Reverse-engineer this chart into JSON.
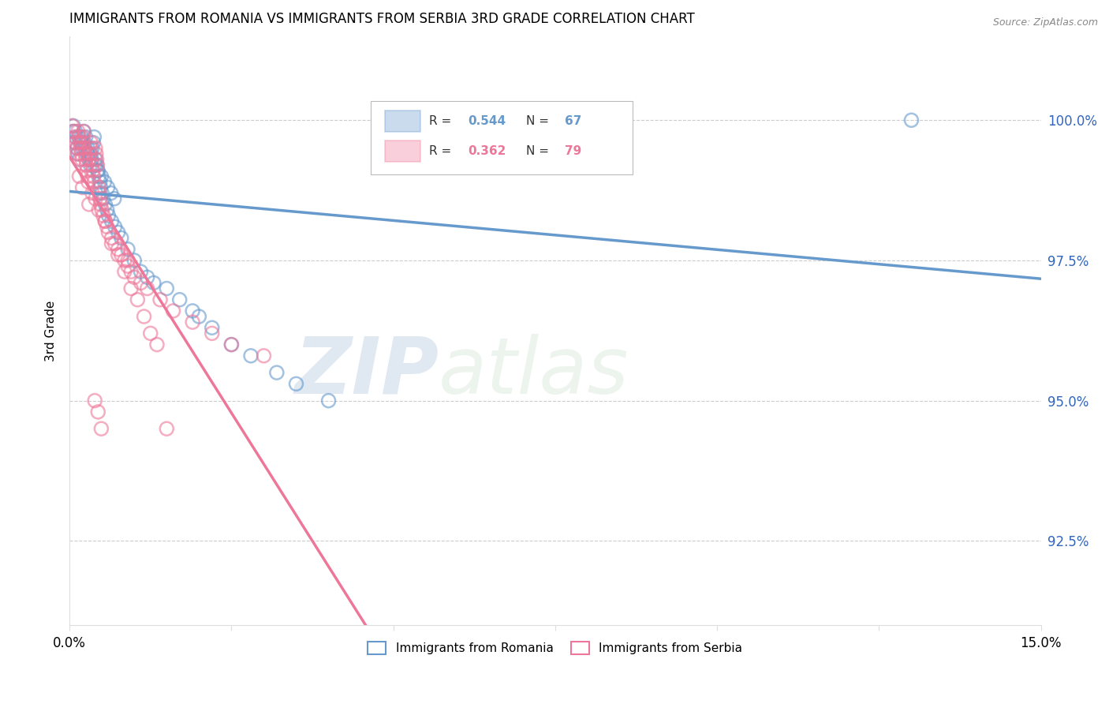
{
  "title": "IMMIGRANTS FROM ROMANIA VS IMMIGRANTS FROM SERBIA 3RD GRADE CORRELATION CHART",
  "source": "Source: ZipAtlas.com",
  "ylabel": "3rd Grade",
  "right_ytick_labels": [
    "92.5%",
    "95.0%",
    "97.5%",
    "100.0%"
  ],
  "right_yticks": [
    92.5,
    95.0,
    97.5,
    100.0
  ],
  "xlim": [
    0.0,
    15.0
  ],
  "ylim": [
    91.0,
    101.5
  ],
  "romania_color": "#6699cc",
  "serbia_color": "#ee7799",
  "romania_R": 0.544,
  "romania_N": 67,
  "serbia_R": 0.362,
  "serbia_N": 79,
  "legend_romania": "Immigrants from Romania",
  "legend_serbia": "Immigrants from Serbia",
  "watermark_zip": "ZIP",
  "watermark_atlas": "atlas",
  "romania_x": [
    0.05,
    0.08,
    0.1,
    0.12,
    0.13,
    0.15,
    0.17,
    0.18,
    0.2,
    0.22,
    0.23,
    0.25,
    0.27,
    0.28,
    0.3,
    0.32,
    0.33,
    0.35,
    0.37,
    0.38,
    0.4,
    0.42,
    0.43,
    0.45,
    0.47,
    0.48,
    0.5,
    0.52,
    0.55,
    0.58,
    0.6,
    0.65,
    0.7,
    0.75,
    0.8,
    0.9,
    1.0,
    1.1,
    1.2,
    1.3,
    1.5,
    1.7,
    1.9,
    2.0,
    2.2,
    2.5,
    2.8,
    3.2,
    3.5,
    4.0,
    7.5,
    8.5,
    13.0,
    0.06,
    0.09,
    0.14,
    0.19,
    0.24,
    0.29,
    0.34,
    0.39,
    0.44,
    0.49,
    0.54,
    0.59,
    0.64,
    0.69
  ],
  "romania_y": [
    99.8,
    99.6,
    99.7,
    99.5,
    99.4,
    99.3,
    99.6,
    99.7,
    99.5,
    99.8,
    99.6,
    99.7,
    99.4,
    99.5,
    99.3,
    99.2,
    99.4,
    99.5,
    99.6,
    99.7,
    99.3,
    99.2,
    99.1,
    99.0,
    98.9,
    98.8,
    98.7,
    98.6,
    98.5,
    98.4,
    98.3,
    98.2,
    98.1,
    98.0,
    97.9,
    97.7,
    97.5,
    97.3,
    97.2,
    97.1,
    97.0,
    96.8,
    96.6,
    96.5,
    96.3,
    96.0,
    95.8,
    95.5,
    95.3,
    95.0,
    100.0,
    100.0,
    100.0,
    99.9,
    99.8,
    99.7,
    99.6,
    99.5,
    99.4,
    99.3,
    99.2,
    99.1,
    99.0,
    98.9,
    98.8,
    98.7,
    98.6
  ],
  "serbia_x": [
    0.04,
    0.06,
    0.08,
    0.1,
    0.11,
    0.12,
    0.13,
    0.15,
    0.16,
    0.17,
    0.18,
    0.19,
    0.2,
    0.21,
    0.22,
    0.23,
    0.24,
    0.25,
    0.26,
    0.27,
    0.28,
    0.29,
    0.3,
    0.31,
    0.32,
    0.33,
    0.35,
    0.36,
    0.37,
    0.38,
    0.4,
    0.41,
    0.42,
    0.43,
    0.45,
    0.46,
    0.47,
    0.48,
    0.5,
    0.52,
    0.55,
    0.58,
    0.6,
    0.65,
    0.7,
    0.75,
    0.8,
    0.85,
    0.9,
    0.95,
    1.0,
    1.1,
    1.2,
    1.4,
    1.6,
    1.9,
    2.2,
    2.5,
    3.0,
    1.5,
    0.9,
    0.3,
    0.2,
    0.15,
    0.4,
    0.35,
    0.45,
    0.55,
    0.65,
    0.75,
    0.85,
    0.95,
    1.05,
    1.15,
    1.25,
    1.35,
    0.44,
    0.49,
    0.39
  ],
  "serbia_y": [
    99.9,
    99.8,
    99.7,
    99.6,
    99.5,
    99.4,
    99.8,
    99.7,
    99.6,
    99.5,
    99.4,
    99.3,
    99.6,
    99.7,
    99.8,
    99.5,
    99.4,
    99.3,
    99.2,
    99.1,
    99.0,
    98.9,
    99.3,
    99.4,
    99.5,
    99.6,
    99.2,
    99.1,
    99.0,
    98.9,
    99.5,
    99.4,
    99.3,
    99.2,
    98.8,
    98.7,
    98.6,
    98.5,
    98.4,
    98.3,
    98.2,
    98.1,
    98.0,
    97.9,
    97.8,
    97.7,
    97.6,
    97.5,
    97.4,
    97.3,
    97.2,
    97.1,
    97.0,
    96.8,
    96.6,
    96.4,
    96.2,
    96.0,
    95.8,
    94.5,
    97.5,
    98.5,
    98.8,
    99.0,
    98.6,
    98.7,
    98.4,
    98.2,
    97.8,
    97.6,
    97.3,
    97.0,
    96.8,
    96.5,
    96.2,
    96.0,
    94.8,
    94.5,
    95.0
  ]
}
